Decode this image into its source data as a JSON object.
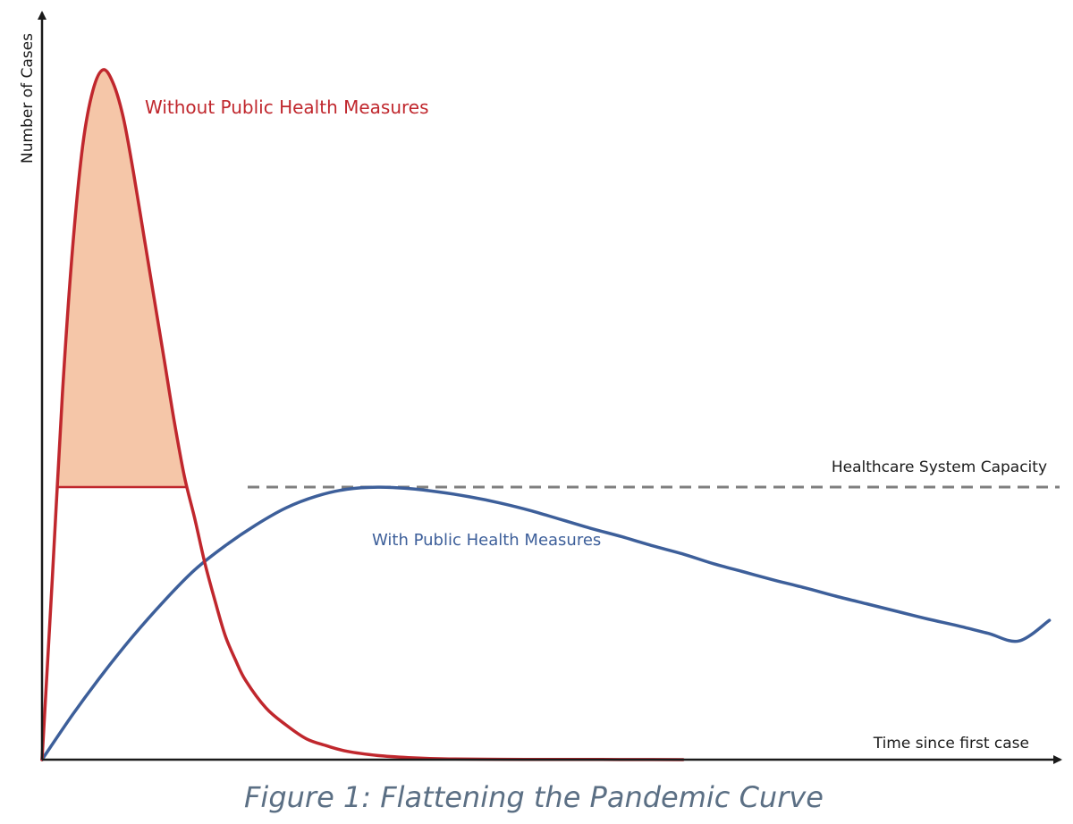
{
  "caption": "Figure 1: Flattening the Pandemic Curve",
  "colors": {
    "without_line": "#c0272d",
    "without_fill": "#f5c6a8",
    "with_line": "#3d5f9a",
    "capacity_line": "#7f7f7f",
    "axis": "#1a1a1a",
    "caption": "#5b6f84"
  },
  "chart_data": {
    "type": "line",
    "title": "",
    "xlabel": "Time since first case",
    "ylabel": "Number of Cases",
    "xlim": [
      0,
      100
    ],
    "ylim": [
      0,
      100
    ],
    "axis_ticks": false,
    "grid": false,
    "legend": "none",
    "reference_lines": [
      {
        "label": "Healthcare System Capacity",
        "y": 39.5,
        "style": "dashed"
      }
    ],
    "series": [
      {
        "name": "Without Public Health Measures",
        "x": [
          0,
          1,
          2,
          3,
          4,
          5,
          6,
          7,
          8,
          9,
          10,
          11,
          12,
          13,
          14,
          15,
          16,
          17,
          18,
          19,
          20,
          22,
          24,
          26,
          28,
          30,
          33,
          36,
          40,
          45,
          50,
          55,
          60,
          63
        ],
        "y": [
          0,
          26,
          53,
          74,
          89,
          97,
          100,
          98,
          93,
          85,
          76,
          67,
          58,
          49,
          41,
          35,
          28.5,
          23,
          18,
          14.5,
          11.5,
          7.5,
          5,
          3,
          2,
          1.2,
          0.6,
          0.3,
          0.1,
          0.05,
          0.03,
          0.02,
          0.01,
          0
        ]
      },
      {
        "name": "With Public Health Measures",
        "x": [
          0,
          3,
          6,
          9,
          12,
          15,
          18,
          21,
          24,
          27,
          30,
          33,
          36,
          39,
          42,
          45,
          48,
          51,
          54,
          57,
          60,
          63,
          66,
          69,
          72,
          75,
          78,
          81,
          84,
          87,
          90,
          93,
          96,
          99
        ],
        "y": [
          0,
          6.5,
          12.5,
          18,
          23,
          27.5,
          31,
          34,
          36.5,
          38.2,
          39.2,
          39.5,
          39.3,
          38.8,
          38.1,
          37.2,
          36.1,
          34.8,
          33.5,
          32.3,
          31,
          29.8,
          28.4,
          27.2,
          26,
          24.9,
          23.7,
          22.6,
          21.5,
          20.4,
          19.4,
          18.3,
          17.2,
          20.2
        ]
      }
    ],
    "shaded_region": {
      "series": "Without Public Health Measures",
      "above": "Healthcare System Capacity"
    }
  }
}
